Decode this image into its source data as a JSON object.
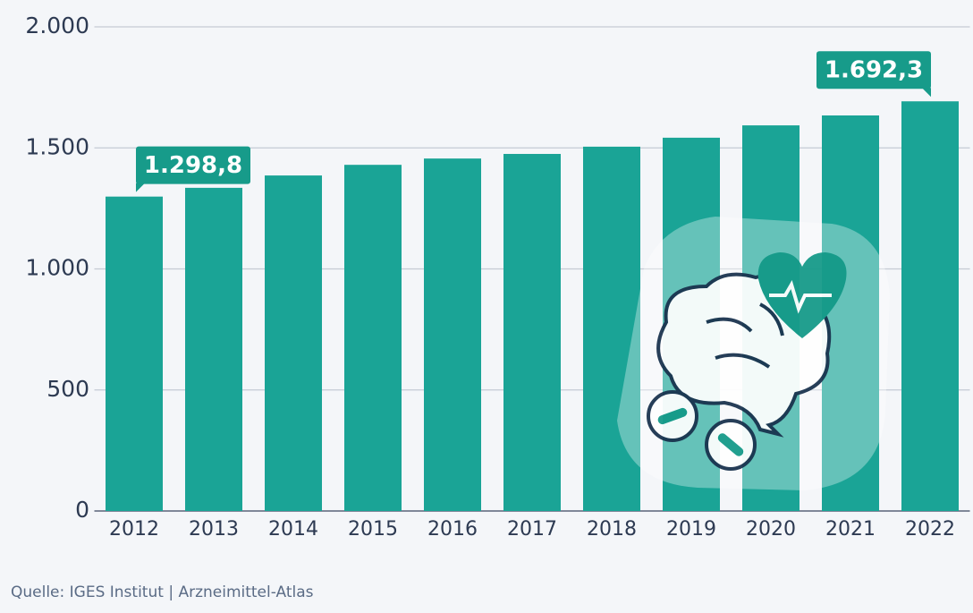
{
  "chart_data": {
    "type": "bar",
    "categories": [
      "2012",
      "2013",
      "2014",
      "2015",
      "2016",
      "2017",
      "2018",
      "2019",
      "2020",
      "2021",
      "2022"
    ],
    "values": [
      1298.8,
      1335,
      1386,
      1430,
      1456,
      1475,
      1505,
      1542,
      1593,
      1634,
      1692.3
    ],
    "value_labels": [
      "1.298,8",
      null,
      null,
      null,
      null,
      null,
      null,
      null,
      null,
      null,
      "1.692,3"
    ],
    "color": "#1aa496",
    "ylim": [
      0,
      2000
    ],
    "yticks": [
      0,
      500,
      {
        "value": 1000,
        "label": "1.000"
      },
      {
        "value": 1500,
        "label": "1.500"
      },
      {
        "value": 2000,
        "label": "2.000"
      }
    ],
    "grid": true,
    "source": "Quelle: IGES Institut | Arzneimittel-Atlas"
  }
}
